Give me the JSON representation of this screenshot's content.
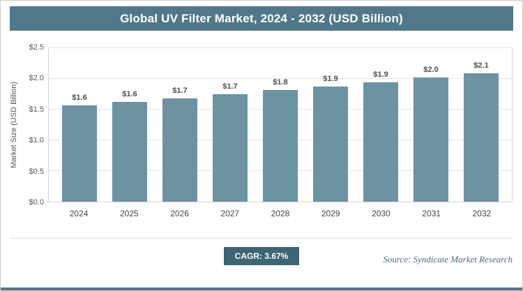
{
  "header": {
    "title": "Global UV Filter Market, 2024 - 2032 (USD Billion)"
  },
  "chart_data": {
    "type": "bar",
    "title": "Global UV Filter Market, 2024 - 2032 (USD Billion)",
    "categories": [
      "2024",
      "2025",
      "2026",
      "2027",
      "2028",
      "2029",
      "2030",
      "2031",
      "2032"
    ],
    "values": [
      1.55,
      1.61,
      1.67,
      1.73,
      1.8,
      1.86,
      1.93,
      2.0,
      2.07
    ],
    "bar_labels": [
      "$1.6",
      "$1.6",
      "$1.7",
      "$1.7",
      "$1.8",
      "$1.9",
      "$1.9",
      "$2.0",
      "$2.1"
    ],
    "xlabel": "",
    "ylabel": "Market Size (USD Billion)",
    "ylim": [
      0,
      2.5
    ],
    "yticks": [
      0.0,
      0.5,
      1.0,
      1.5,
      2.0,
      2.5
    ],
    "ytick_labels": [
      "$0.0",
      "$0.5",
      "$1.0",
      "$1.5",
      "$2.0",
      "$2.5"
    ],
    "grid": true,
    "legend": "none"
  },
  "footer": {
    "cagr_label": "CAGR: 3.67%",
    "source": "Source: Syndicate Market Research"
  },
  "colors": {
    "header_bg": "#50788a",
    "bar": "#6d92a2",
    "badge_bg": "#3c6575",
    "accent_strip": "#50788a"
  }
}
